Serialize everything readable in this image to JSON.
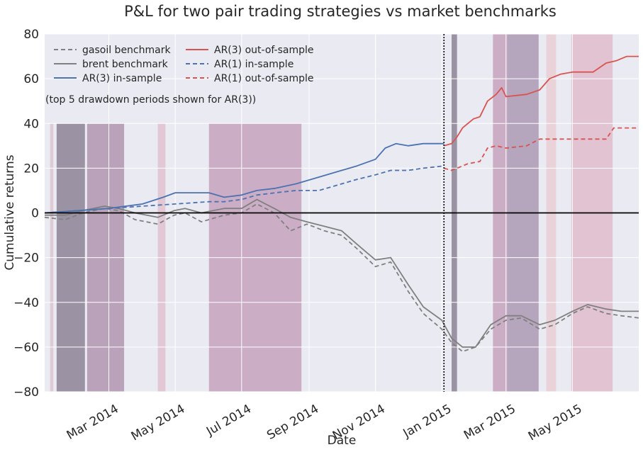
{
  "chart_data": {
    "type": "line",
    "title": "P&L for two pair trading strategies vs market benchmarks",
    "xlabel": "Date",
    "ylabel": "Cumulative returns",
    "annotation": "(top 5 drawdown periods shown for AR(3))",
    "xlim": [
      "2014-01-01",
      "2015-07-01"
    ],
    "ylim": [
      -80,
      80
    ],
    "yticks": [
      -80,
      -60,
      -40,
      -20,
      0,
      20,
      40,
      60,
      80
    ],
    "xticks": [
      {
        "date": "2014-03-01",
        "label": "Mar 2014"
      },
      {
        "date": "2014-05-01",
        "label": "May 2014"
      },
      {
        "date": "2014-07-01",
        "label": "Jul 2014"
      },
      {
        "date": "2014-09-01",
        "label": "Sep 2014"
      },
      {
        "date": "2014-11-01",
        "label": "Nov 2014"
      },
      {
        "date": "2015-01-01",
        "label": "Jan 2015"
      },
      {
        "date": "2015-03-01",
        "label": "Mar 2015"
      },
      {
        "date": "2015-05-01",
        "label": "May 2015"
      }
    ],
    "grid": true,
    "legend_position": "top-left",
    "split_date": "2015-01-03",
    "zero_line": 0,
    "colors": {
      "background": "#eaeaf2",
      "grid": "#ffffff",
      "benchmark": "#808080",
      "in_sample": "#4c72b0",
      "out_sample": "#d9534f"
    },
    "drawdown_shading": [
      {
        "in_sample": true,
        "start": "2014-01-06",
        "end": "2014-01-09",
        "color": "#d3a6b4",
        "opacity": 0.45
      },
      {
        "in_sample": true,
        "start": "2014-01-12",
        "end": "2014-02-07",
        "color": "#5a4a62",
        "opacity": 0.55
      },
      {
        "in_sample": true,
        "start": "2014-02-09",
        "end": "2014-03-15",
        "color": "#8a5a82",
        "opacity": 0.5
      },
      {
        "in_sample": true,
        "start": "2014-04-15",
        "end": "2014-04-22",
        "color": "#d895a8",
        "opacity": 0.4
      },
      {
        "in_sample": true,
        "start": "2014-06-01",
        "end": "2014-08-25",
        "color": "#a86490",
        "opacity": 0.45
      },
      {
        "in_sample": false,
        "start": "2015-01-10",
        "end": "2015-01-15",
        "color": "#5a4a62",
        "opacity": 0.55
      },
      {
        "in_sample": false,
        "start": "2015-02-17",
        "end": "2015-03-02",
        "color": "#a86490",
        "opacity": 0.45
      },
      {
        "in_sample": false,
        "start": "2015-03-02",
        "end": "2015-03-31",
        "color": "#806288",
        "opacity": 0.5
      },
      {
        "in_sample": false,
        "start": "2015-04-07",
        "end": "2015-04-16",
        "color": "#e8c0c5",
        "opacity": 0.55
      },
      {
        "in_sample": false,
        "start": "2015-04-30",
        "end": "2015-06-07",
        "color": "#d895a8",
        "opacity": 0.45
      }
    ],
    "series": [
      {
        "name": "gasoil benchmark",
        "color": "#808080",
        "dash": true,
        "points": [
          [
            "2014-01-01",
            -2
          ],
          [
            "2014-01-20",
            -3
          ],
          [
            "2014-02-05",
            0
          ],
          [
            "2014-02-25",
            2
          ],
          [
            "2014-03-10",
            1
          ],
          [
            "2014-03-25",
            -3
          ],
          [
            "2014-04-15",
            -5
          ],
          [
            "2014-04-30",
            -1
          ],
          [
            "2014-05-10",
            0
          ],
          [
            "2014-05-25",
            -4
          ],
          [
            "2014-06-15",
            -1
          ],
          [
            "2014-07-01",
            0
          ],
          [
            "2014-07-15",
            4
          ],
          [
            "2014-07-31",
            0
          ],
          [
            "2014-08-15",
            -8
          ],
          [
            "2014-08-30",
            -5
          ],
          [
            "2014-09-15",
            -8
          ],
          [
            "2014-10-01",
            -10
          ],
          [
            "2014-10-15",
            -16
          ],
          [
            "2014-11-01",
            -24
          ],
          [
            "2014-11-15",
            -22
          ],
          [
            "2014-12-01",
            -35
          ],
          [
            "2014-12-15",
            -45
          ],
          [
            "2015-01-01",
            -52
          ],
          [
            "2015-01-10",
            -58
          ],
          [
            "2015-01-20",
            -62
          ],
          [
            "2015-02-01",
            -60
          ],
          [
            "2015-02-15",
            -52
          ],
          [
            "2015-03-01",
            -48
          ],
          [
            "2015-03-15",
            -47
          ],
          [
            "2015-04-01",
            -52
          ],
          [
            "2015-04-15",
            -50
          ],
          [
            "2015-05-01",
            -45
          ],
          [
            "2015-05-15",
            -42
          ],
          [
            "2015-06-01",
            -45
          ],
          [
            "2015-06-15",
            -46
          ],
          [
            "2015-07-01",
            -47
          ]
        ]
      },
      {
        "name": "brent benchmark",
        "color": "#808080",
        "dash": false,
        "points": [
          [
            "2014-01-01",
            -1
          ],
          [
            "2014-01-20",
            -1
          ],
          [
            "2014-02-05",
            1
          ],
          [
            "2014-02-25",
            3
          ],
          [
            "2014-03-10",
            2
          ],
          [
            "2014-03-25",
            0
          ],
          [
            "2014-04-15",
            -2
          ],
          [
            "2014-04-30",
            1
          ],
          [
            "2014-05-10",
            2
          ],
          [
            "2014-05-25",
            0
          ],
          [
            "2014-06-15",
            2
          ],
          [
            "2014-07-01",
            2
          ],
          [
            "2014-07-15",
            6
          ],
          [
            "2014-07-31",
            2
          ],
          [
            "2014-08-15",
            -2
          ],
          [
            "2014-08-30",
            -4
          ],
          [
            "2014-09-15",
            -6
          ],
          [
            "2014-10-01",
            -8
          ],
          [
            "2014-10-15",
            -14
          ],
          [
            "2014-11-01",
            -21
          ],
          [
            "2014-11-15",
            -20
          ],
          [
            "2014-12-01",
            -32
          ],
          [
            "2014-12-15",
            -42
          ],
          [
            "2015-01-01",
            -48
          ],
          [
            "2015-01-10",
            -56
          ],
          [
            "2015-01-20",
            -60
          ],
          [
            "2015-02-01",
            -60
          ],
          [
            "2015-02-15",
            -50
          ],
          [
            "2015-03-01",
            -46
          ],
          [
            "2015-03-15",
            -46
          ],
          [
            "2015-04-01",
            -50
          ],
          [
            "2015-04-15",
            -48
          ],
          [
            "2015-05-01",
            -44
          ],
          [
            "2015-05-15",
            -41
          ],
          [
            "2015-06-01",
            -43
          ],
          [
            "2015-06-15",
            -44
          ],
          [
            "2015-07-01",
            -44
          ]
        ]
      },
      {
        "name": "AR(3) in-sample",
        "color": "#4c72b0",
        "dash": false,
        "points": [
          [
            "2014-01-01",
            0
          ],
          [
            "2014-02-01",
            1
          ],
          [
            "2014-03-01",
            2
          ],
          [
            "2014-04-01",
            4
          ],
          [
            "2014-04-20",
            7
          ],
          [
            "2014-05-01",
            9
          ],
          [
            "2014-06-01",
            9
          ],
          [
            "2014-06-15",
            7
          ],
          [
            "2014-07-01",
            8
          ],
          [
            "2014-07-15",
            10
          ],
          [
            "2014-08-01",
            11
          ],
          [
            "2014-08-20",
            13
          ],
          [
            "2014-09-10",
            16
          ],
          [
            "2014-10-01",
            19
          ],
          [
            "2014-10-15",
            21
          ],
          [
            "2014-11-01",
            24
          ],
          [
            "2014-11-10",
            29
          ],
          [
            "2014-11-20",
            31
          ],
          [
            "2014-12-01",
            30
          ],
          [
            "2014-12-15",
            31
          ],
          [
            "2015-01-01",
            31
          ],
          [
            "2015-01-03",
            31
          ]
        ]
      },
      {
        "name": "AR(3) out-of-sample",
        "color": "#d9534f",
        "dash": false,
        "points": [
          [
            "2015-01-03",
            30
          ],
          [
            "2015-01-10",
            31
          ],
          [
            "2015-01-15",
            34
          ],
          [
            "2015-01-20",
            38
          ],
          [
            "2015-01-30",
            42
          ],
          [
            "2015-02-05",
            43
          ],
          [
            "2015-02-12",
            50
          ],
          [
            "2015-02-20",
            53
          ],
          [
            "2015-02-25",
            56
          ],
          [
            "2015-03-01",
            52
          ],
          [
            "2015-03-20",
            53
          ],
          [
            "2015-04-01",
            55
          ],
          [
            "2015-04-10",
            60
          ],
          [
            "2015-04-20",
            62
          ],
          [
            "2015-05-01",
            63
          ],
          [
            "2015-05-20",
            63
          ],
          [
            "2015-06-01",
            67
          ],
          [
            "2015-06-10",
            68
          ],
          [
            "2015-06-20",
            70
          ],
          [
            "2015-07-01",
            70
          ]
        ]
      },
      {
        "name": "AR(1) in-sample",
        "color": "#4c72b0",
        "dash": true,
        "points": [
          [
            "2014-01-01",
            0
          ],
          [
            "2014-02-01",
            1
          ],
          [
            "2014-03-01",
            2
          ],
          [
            "2014-04-01",
            3
          ],
          [
            "2014-05-01",
            4
          ],
          [
            "2014-06-01",
            5
          ],
          [
            "2014-06-15",
            5
          ],
          [
            "2014-07-01",
            6
          ],
          [
            "2014-07-15",
            8
          ],
          [
            "2014-08-01",
            9
          ],
          [
            "2014-08-20",
            10
          ],
          [
            "2014-09-10",
            10
          ],
          [
            "2014-10-01",
            13
          ],
          [
            "2014-10-15",
            15
          ],
          [
            "2014-11-01",
            17
          ],
          [
            "2014-11-15",
            19
          ],
          [
            "2014-12-01",
            19
          ],
          [
            "2014-12-15",
            20
          ],
          [
            "2015-01-03",
            21
          ]
        ]
      },
      {
        "name": "AR(1) out-of-sample",
        "color": "#d9534f",
        "dash": true,
        "points": [
          [
            "2015-01-03",
            20
          ],
          [
            "2015-01-10",
            19
          ],
          [
            "2015-01-15",
            20
          ],
          [
            "2015-01-25",
            22
          ],
          [
            "2015-02-05",
            23
          ],
          [
            "2015-02-12",
            29
          ],
          [
            "2015-02-20",
            30
          ],
          [
            "2015-03-01",
            29
          ],
          [
            "2015-03-20",
            30
          ],
          [
            "2015-04-01",
            33
          ],
          [
            "2015-04-15",
            33
          ],
          [
            "2015-05-01",
            33
          ],
          [
            "2015-05-20",
            33
          ],
          [
            "2015-06-01",
            33
          ],
          [
            "2015-06-08",
            38
          ],
          [
            "2015-06-20",
            38
          ],
          [
            "2015-07-01",
            38
          ]
        ]
      }
    ],
    "legend_entries": [
      {
        "name": "gasoil benchmark",
        "color": "#808080",
        "dash": true
      },
      {
        "name": "brent benchmark",
        "color": "#808080",
        "dash": false
      },
      {
        "name": "AR(3) in-sample",
        "color": "#4c72b0",
        "dash": false
      },
      {
        "name": "AR(3) out-of-sample",
        "color": "#d9534f",
        "dash": false
      },
      {
        "name": "AR(1) in-sample",
        "color": "#4c72b0",
        "dash": true
      },
      {
        "name": "AR(1) out-of-sample",
        "color": "#d9534f",
        "dash": true
      }
    ]
  }
}
